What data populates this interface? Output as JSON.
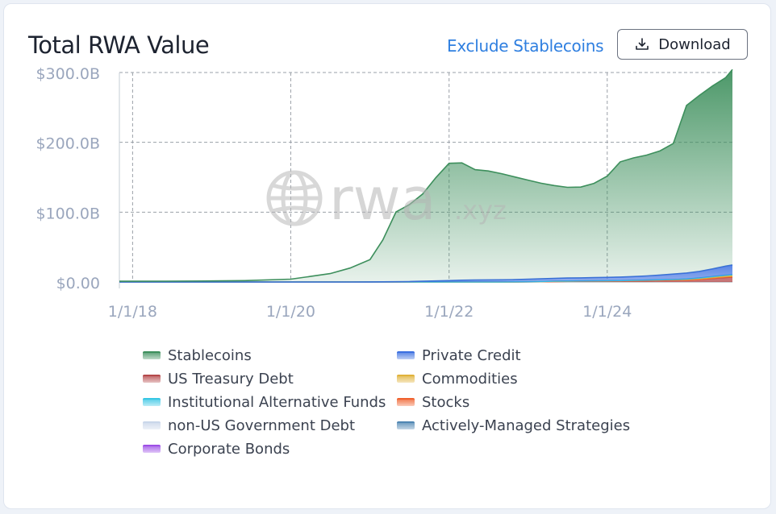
{
  "header": {
    "title": "Total RWA Value",
    "exclude_label": "Exclude Stablecoins",
    "download_label": "Download"
  },
  "watermark": {
    "text": "rwa",
    "suffix": ".xyz"
  },
  "colors": {
    "Stablecoins": "#3d8f5c",
    "Private Credit": "#3b6fe0",
    "US Treasury Debt": "#b5484a",
    "Commodities": "#e0b23a",
    "Institutional Alternative Funds": "#36c6e4",
    "Stocks": "#f0612e",
    "non-US Government Debt": "#c9d6ea",
    "Actively-Managed Strategies": "#4f86b3",
    "Corporate Bonds": "#9d4fe6"
  },
  "chart_data": {
    "type": "area",
    "stacked": true,
    "title": "Total RWA Value",
    "xlabel": "",
    "ylabel": "",
    "x_ticks": [
      "1/1/18",
      "1/1/20",
      "1/1/22",
      "1/1/24"
    ],
    "y_ticks": [
      "$0.00",
      "$100.0B",
      "$200.0B",
      "$300.0B"
    ],
    "ylim": [
      0,
      300
    ],
    "y_unit": "B USD",
    "xlim": [
      "2017-11-01",
      "2025-08-01"
    ],
    "grid": true,
    "legend_position": "bottom",
    "x": [
      "2017-11-01",
      "2018-06-01",
      "2019-01-01",
      "2019-06-01",
      "2020-01-01",
      "2020-04-01",
      "2020-07-01",
      "2020-10-01",
      "2021-01-01",
      "2021-03-01",
      "2021-05-01",
      "2021-07-01",
      "2021-09-01",
      "2021-11-01",
      "2022-01-01",
      "2022-03-01",
      "2022-05-01",
      "2022-07-01",
      "2022-09-01",
      "2022-11-01",
      "2023-01-01",
      "2023-03-01",
      "2023-05-01",
      "2023-07-01",
      "2023-09-01",
      "2023-11-01",
      "2024-01-01",
      "2024-03-01",
      "2024-05-01",
      "2024-07-01",
      "2024-09-01",
      "2024-11-01",
      "2025-01-01",
      "2025-03-01",
      "2025-05-01",
      "2025-07-01",
      "2025-08-01"
    ],
    "series": [
      {
        "name": "US Treasury Debt",
        "values": [
          0,
          0,
          0,
          0,
          0,
          0,
          0,
          0,
          0,
          0,
          0,
          0,
          0,
          0,
          0,
          0,
          0,
          0,
          0,
          0.1,
          0.2,
          0.4,
          0.7,
          0.9,
          1.0,
          1.1,
          1.2,
          1.4,
          1.6,
          1.9,
          2.2,
          2.4,
          2.8,
          3.6,
          5.0,
          6.5,
          7.0
        ]
      },
      {
        "name": "Stocks",
        "values": [
          0,
          0,
          0,
          0,
          0,
          0,
          0,
          0,
          0,
          0,
          0,
          0,
          0,
          0,
          0,
          0,
          0,
          0,
          0,
          0,
          0,
          0,
          0,
          0,
          0,
          0,
          0,
          0,
          0,
          0,
          0,
          0,
          0,
          0,
          0.3,
          0.4,
          0.4
        ]
      },
      {
        "name": "Commodities",
        "values": [
          0,
          0,
          0,
          0,
          0,
          0,
          0,
          0,
          0,
          0,
          0,
          0,
          0,
          0,
          0,
          0,
          0,
          0,
          0,
          0.1,
          0.2,
          0.3,
          0.4,
          0.5,
          0.5,
          0.5,
          0.6,
          0.6,
          0.7,
          0.8,
          0.9,
          1.1,
          1.3,
          1.6,
          1.8,
          2.0,
          2.1
        ]
      },
      {
        "name": "Institutional Alternative Funds",
        "values": [
          0,
          0,
          0,
          0,
          0,
          0,
          0,
          0,
          0,
          0,
          0,
          0,
          0,
          0,
          0,
          0,
          0,
          0,
          0,
          0,
          0,
          0,
          0,
          0,
          0,
          0,
          0,
          0,
          0,
          0,
          0,
          0,
          0.2,
          0.4,
          0.6,
          0.8,
          0.9
        ]
      },
      {
        "name": "Private Credit",
        "values": [
          0,
          0,
          0,
          0,
          0,
          0,
          0,
          0,
          0.1,
          0.2,
          0.3,
          0.6,
          1.0,
          1.5,
          2.0,
          2.5,
          2.8,
          3.0,
          3.1,
          3.2,
          3.5,
          3.8,
          4.0,
          4.2,
          4.4,
          4.6,
          4.8,
          5.0,
          5.4,
          6.0,
          6.8,
          7.8,
          8.5,
          9.5,
          11.0,
          13.0,
          14.0
        ]
      },
      {
        "name": "Stablecoins",
        "values": [
          1,
          1.2,
          1.5,
          2,
          4,
          8,
          12,
          20,
          32,
          60,
          100,
          110,
          125,
          148,
          168,
          168,
          158,
          156,
          152,
          147,
          142,
          137,
          133,
          130,
          130,
          135,
          145,
          165,
          170,
          173,
          178,
          187,
          240,
          252,
          262,
          270,
          280
        ]
      }
    ]
  }
}
